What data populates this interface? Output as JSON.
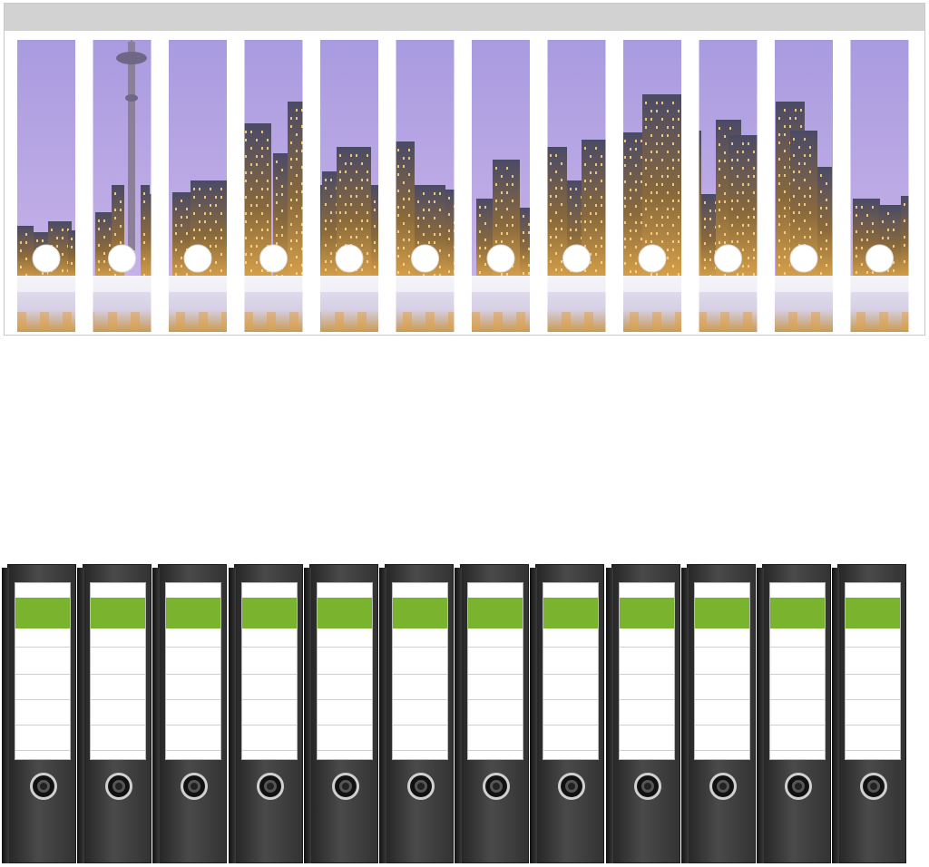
{
  "image": {
    "subject": "binder-spine-labels-city-skyline",
    "sheet": {
      "strip_count": 12,
      "sky_color_top": "#a99be0",
      "sky_color_bottom": "#c7b2e8",
      "water_color": "#e8e6f2",
      "hole_color": "#ffffff"
    },
    "binders": {
      "count": 12,
      "body_color": "#333333",
      "label_accent_color": "#7ab32e",
      "label_color": "#ffffff",
      "ring_icon": "finger-hole-icon"
    }
  }
}
